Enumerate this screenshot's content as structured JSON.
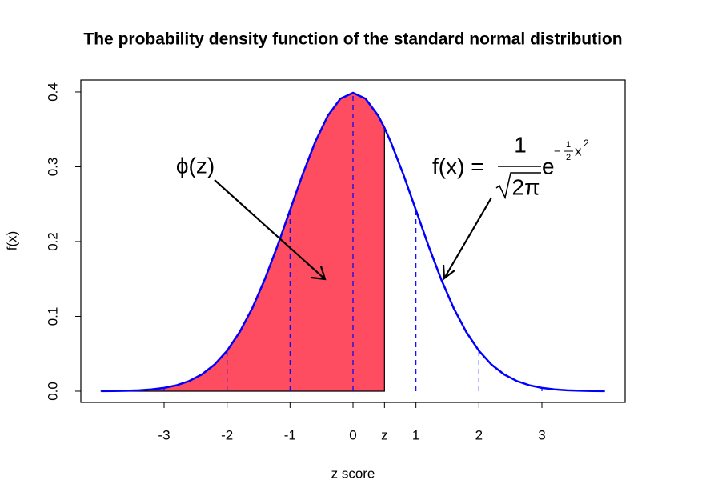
{
  "chart_data": {
    "type": "line",
    "title": "The probability density function of the standard normal distribution",
    "xlabel": "z score",
    "ylabel": "f(x)",
    "x": [
      -4,
      -3.8,
      -3.6,
      -3.4,
      -3.2,
      -3,
      -2.8,
      -2.6,
      -2.4,
      -2.2,
      -2,
      -1.8,
      -1.6,
      -1.4,
      -1.2,
      -1,
      -0.8,
      -0.6,
      -0.4,
      -0.2,
      0,
      0.2,
      0.4,
      0.5,
      0.6,
      0.8,
      1,
      1.2,
      1.4,
      1.6,
      1.8,
      2,
      2.2,
      2.4,
      2.6,
      2.8,
      3,
      3.2,
      3.4,
      3.6,
      3.8,
      4
    ],
    "series": [
      {
        "color": "#0000ff",
        "values": [
          0.0001,
          0.0003,
          0.0006,
          0.0012,
          0.0024,
          0.0044,
          0.0079,
          0.0136,
          0.0224,
          0.0355,
          0.054,
          0.079,
          0.1109,
          0.1497,
          0.1942,
          0.242,
          0.2897,
          0.3332,
          0.3683,
          0.391,
          0.3989,
          0.391,
          0.3683,
          0.3521,
          0.3332,
          0.2897,
          0.242,
          0.1942,
          0.1497,
          0.1109,
          0.079,
          0.054,
          0.0355,
          0.0224,
          0.0136,
          0.0079,
          0.0044,
          0.0024,
          0.0012,
          0.0006,
          0.0003,
          0.0001
        ]
      }
    ],
    "shade_color": "#fe4d61",
    "xlim": [
      -4.322,
      4.322
    ],
    "ylim": [
      -0.015,
      0.416
    ],
    "xticks": [
      -3,
      -2,
      -1,
      0,
      {
        "value": 0.5,
        "label": "z"
      },
      1,
      2,
      3
    ],
    "yticks": [
      {
        "value": 0,
        "label": "0.0"
      },
      0.1,
      0.2,
      0.3,
      0.4
    ],
    "annotations": {
      "phi": "ϕ(z)",
      "formula": {
        "lhs": "f(x) =",
        "numerator": "1",
        "denominator": "2π",
        "base": "e",
        "exp_sign": "−",
        "exp_num": "1",
        "exp_den": "2",
        "exp_var": "x",
        "exp_power": "2"
      }
    }
  }
}
